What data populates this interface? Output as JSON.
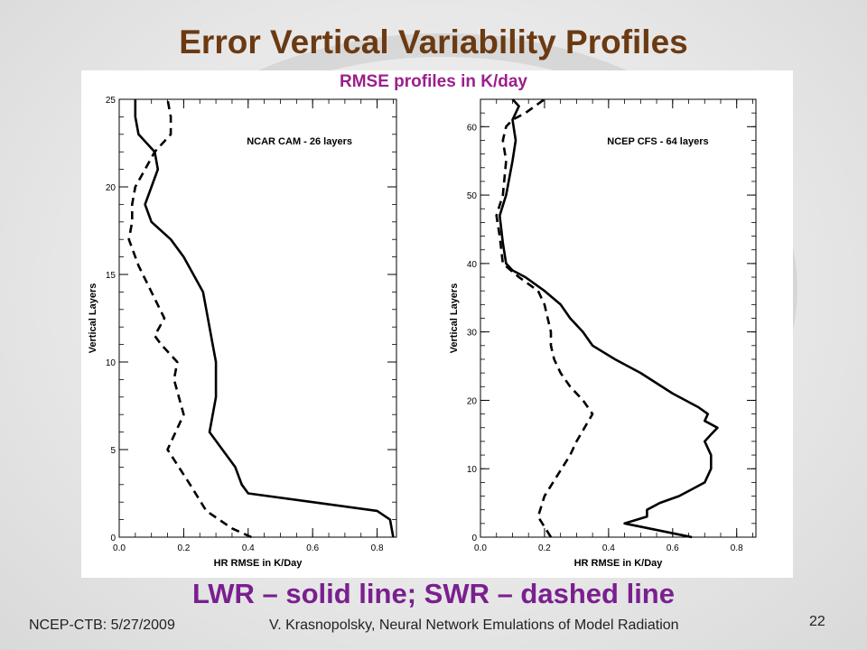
{
  "slide": {
    "title": "Error Vertical Variability Profiles",
    "subtitle": "RMSE profiles in K/day",
    "caption": "LWR – solid line;  SWR – dashed line",
    "footer_left": "NCEP-CTB: 5/27/2009",
    "footer_center": "V. Krasnopolsky, Neural Network Emulations of Model Radiation",
    "page_number": "22"
  },
  "colors": {
    "title": "#6b3a12",
    "subtitle": "#9b1f8c",
    "caption": "#7a1f8f",
    "line": "#000000"
  },
  "chart_data": [
    {
      "type": "line",
      "annotation": "NCAR CAM - 26 layers",
      "xlabel": "HR RMSE in K/Day",
      "ylabel": "Vertical Layers",
      "xlim": [
        0.0,
        0.86
      ],
      "ylim": [
        0,
        25
      ],
      "xticks": [
        "0.0",
        "0.2",
        "0.4",
        "0.6",
        "0.8"
      ],
      "yticks": [
        "0",
        "5",
        "10",
        "15",
        "20",
        "25"
      ],
      "series": [
        {
          "style": "solid",
          "points": [
            [
              0.85,
              0
            ],
            [
              0.84,
              1
            ],
            [
              0.8,
              1.5
            ],
            [
              0.6,
              2
            ],
            [
              0.4,
              2.5
            ],
            [
              0.38,
              3
            ],
            [
              0.36,
              4
            ],
            [
              0.28,
              6
            ],
            [
              0.3,
              8
            ],
            [
              0.3,
              9
            ],
            [
              0.3,
              10
            ],
            [
              0.29,
              11
            ],
            [
              0.27,
              13
            ],
            [
              0.26,
              14
            ],
            [
              0.2,
              16
            ],
            [
              0.16,
              17
            ],
            [
              0.1,
              18
            ],
            [
              0.08,
              19
            ],
            [
              0.1,
              20
            ],
            [
              0.12,
              21
            ],
            [
              0.11,
              22
            ],
            [
              0.06,
              23
            ],
            [
              0.05,
              24
            ],
            [
              0.05,
              25
            ]
          ]
        },
        {
          "style": "dashed",
          "points": [
            [
              0.41,
              0
            ],
            [
              0.35,
              0.5
            ],
            [
              0.27,
              1.5
            ],
            [
              0.22,
              3
            ],
            [
              0.15,
              5
            ],
            [
              0.2,
              7
            ],
            [
              0.17,
              9
            ],
            [
              0.18,
              10
            ],
            [
              0.13,
              11
            ],
            [
              0.11,
              11.5
            ],
            [
              0.14,
              12.5
            ],
            [
              0.1,
              14
            ],
            [
              0.06,
              15.5
            ],
            [
              0.03,
              17
            ],
            [
              0.04,
              18
            ],
            [
              0.04,
              19
            ],
            [
              0.05,
              20
            ],
            [
              0.08,
              21
            ],
            [
              0.11,
              22
            ],
            [
              0.16,
              23
            ],
            [
              0.16,
              24
            ],
            [
              0.15,
              25
            ]
          ]
        }
      ]
    },
    {
      "type": "line",
      "annotation": "NCEP CFS - 64 layers",
      "xlabel": "HR RMSE in K/Day",
      "ylabel": "Vertical Layers",
      "xlim": [
        0.0,
        0.86
      ],
      "ylim": [
        0,
        64
      ],
      "xticks": [
        "0.0",
        "0.2",
        "0.4",
        "0.6",
        "0.8"
      ],
      "yticks": [
        "0",
        "10",
        "20",
        "30",
        "40",
        "50",
        "60"
      ],
      "series": [
        {
          "style": "solid",
          "points": [
            [
              0.66,
              0
            ],
            [
              0.45,
              2
            ],
            [
              0.52,
              3
            ],
            [
              0.52,
              4
            ],
            [
              0.56,
              5
            ],
            [
              0.62,
              6
            ],
            [
              0.66,
              7
            ],
            [
              0.7,
              8
            ],
            [
              0.72,
              10
            ],
            [
              0.72,
              12
            ],
            [
              0.7,
              14
            ],
            [
              0.72,
              15
            ],
            [
              0.74,
              16
            ],
            [
              0.7,
              17
            ],
            [
              0.71,
              18
            ],
            [
              0.68,
              19
            ],
            [
              0.6,
              21
            ],
            [
              0.5,
              24
            ],
            [
              0.42,
              26
            ],
            [
              0.35,
              28
            ],
            [
              0.32,
              30
            ],
            [
              0.28,
              32
            ],
            [
              0.25,
              34
            ],
            [
              0.2,
              36
            ],
            [
              0.14,
              38
            ],
            [
              0.1,
              39
            ],
            [
              0.08,
              40
            ],
            [
              0.07,
              43
            ],
            [
              0.06,
              47
            ],
            [
              0.08,
              50
            ],
            [
              0.1,
              55
            ],
            [
              0.11,
              58
            ],
            [
              0.1,
              61
            ],
            [
              0.12,
              63
            ],
            [
              0.1,
              64
            ]
          ]
        },
        {
          "style": "dashed",
          "points": [
            [
              0.22,
              0
            ],
            [
              0.18,
              3
            ],
            [
              0.2,
              6
            ],
            [
              0.24,
              9
            ],
            [
              0.28,
              12
            ],
            [
              0.3,
              14
            ],
            [
              0.35,
              18
            ],
            [
              0.32,
              20
            ],
            [
              0.28,
              22
            ],
            [
              0.25,
              24
            ],
            [
              0.23,
              26
            ],
            [
              0.22,
              28
            ],
            [
              0.22,
              30
            ],
            [
              0.2,
              34
            ],
            [
              0.18,
              36
            ],
            [
              0.12,
              38
            ],
            [
              0.07,
              40
            ],
            [
              0.06,
              44
            ],
            [
              0.05,
              47
            ],
            [
              0.07,
              50
            ],
            [
              0.08,
              55
            ],
            [
              0.07,
              58
            ],
            [
              0.08,
              60
            ],
            [
              0.1,
              61
            ],
            [
              0.14,
              62
            ],
            [
              0.2,
              64
            ]
          ]
        }
      ]
    }
  ]
}
